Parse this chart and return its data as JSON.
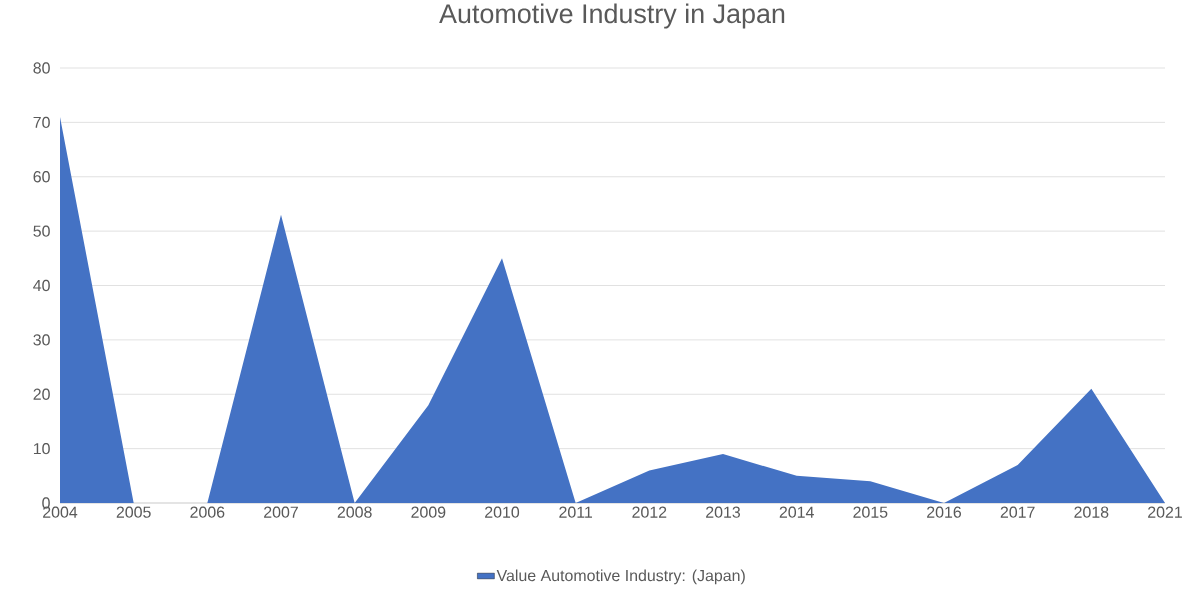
{
  "chart_data": {
    "type": "area",
    "title": "Automotive Industry in Japan",
    "categories": [
      "2004",
      "2005",
      "2006",
      "2007",
      "2008",
      "2009",
      "2010",
      "2011",
      "2012",
      "2013",
      "2014",
      "2015",
      "2016",
      "2017",
      "2018",
      "2021"
    ],
    "series": [
      {
        "name": "Value Automotive Industry: (Japan)",
        "color": "#4472c4",
        "values": [
          71,
          0,
          0,
          53,
          0,
          18,
          45,
          0,
          6,
          9,
          5,
          4,
          0,
          7,
          21,
          0
        ]
      }
    ],
    "ylim": [
      0,
      80
    ],
    "yticks": [
      0,
      10,
      20,
      30,
      40,
      50,
      60,
      70,
      80
    ],
    "grid": "y",
    "legend": "bottom"
  }
}
